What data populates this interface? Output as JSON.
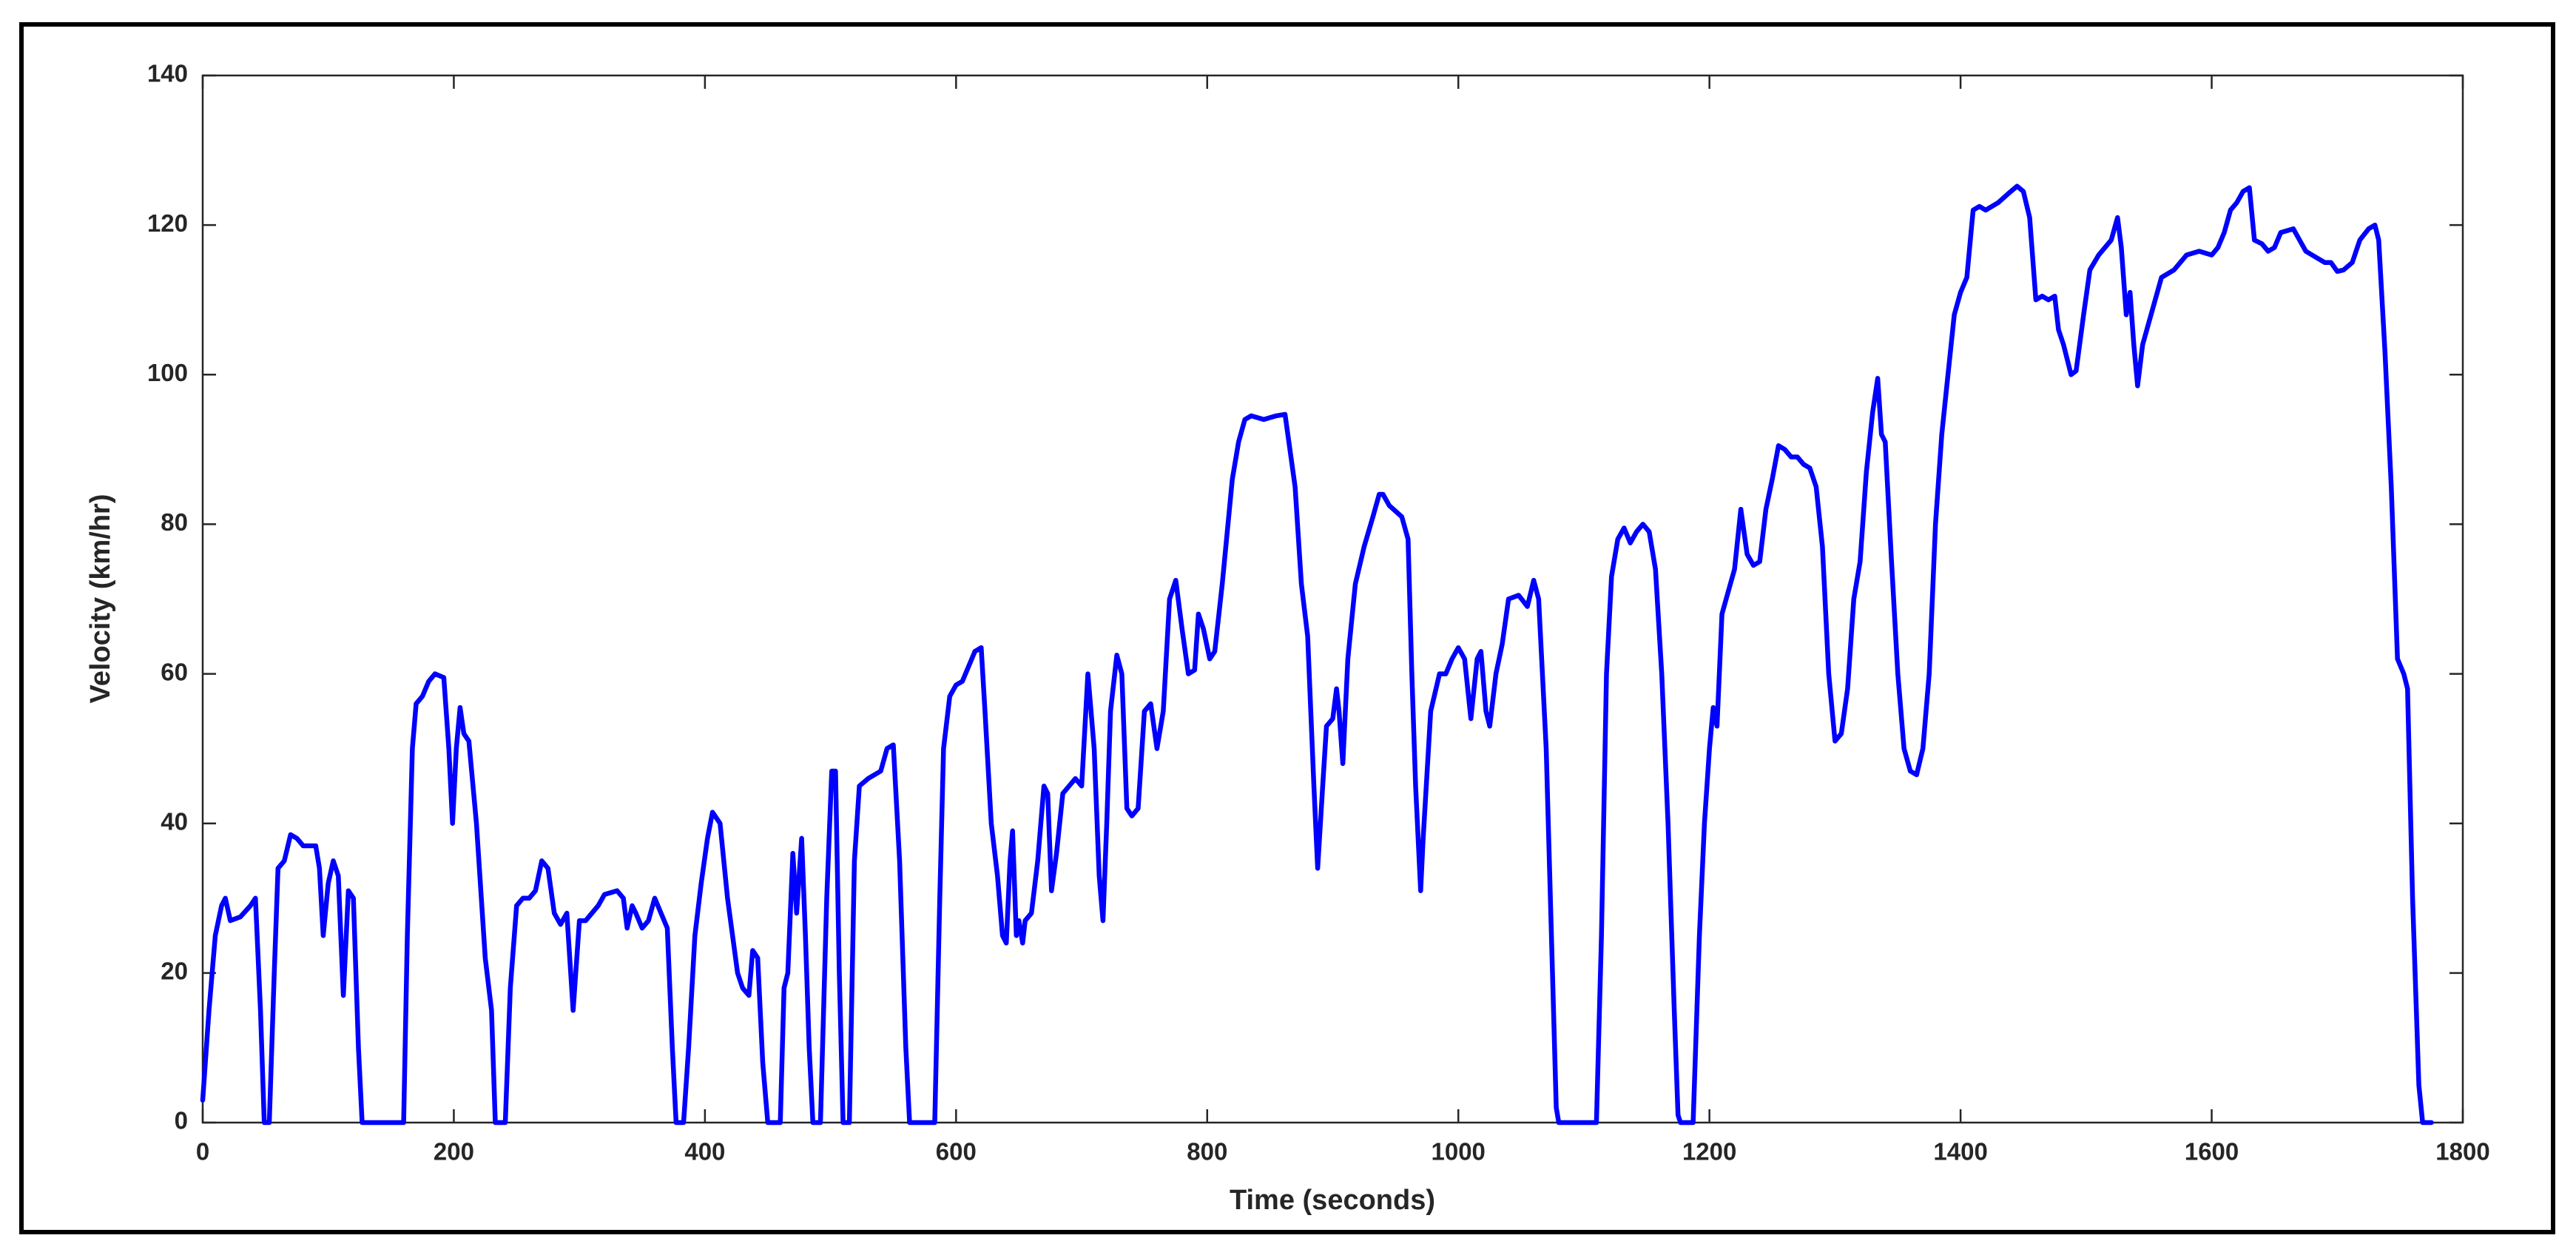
{
  "chart_data": {
    "type": "line",
    "xlabel": "Time (seconds)",
    "ylabel": "Velocity (km/hr)",
    "xlim": [
      0,
      1800
    ],
    "xticks": [
      0,
      200,
      400,
      600,
      800,
      1000,
      1200,
      1400,
      1600,
      1800
    ],
    "ylim": [
      0,
      140
    ],
    "yticks": [
      0,
      20,
      40,
      60,
      80,
      100,
      120,
      140
    ],
    "grid": false,
    "series": [
      {
        "color": "#0000ff",
        "x": [
          0,
          5,
          10,
          15,
          18,
          22,
          30,
          38,
          42,
          46,
          49,
          53,
          57,
          60,
          65,
          70,
          75,
          80,
          90,
          93,
          96,
          100,
          104,
          108,
          112,
          116,
          120,
          124,
          127,
          160,
          163,
          167,
          170,
          175,
          180,
          185,
          192,
          196,
          199,
          202,
          205,
          208,
          212,
          218,
          225,
          230,
          233,
          241,
          245,
          250,
          255,
          260,
          265,
          270,
          275,
          280,
          285,
          290,
          295,
          300,
          305,
          310,
          315,
          320,
          330,
          335,
          338,
          342,
          345,
          350,
          355,
          360,
          365,
          370,
          374,
          377,
          383,
          387,
          392,
          397,
          402,
          406,
          412,
          418,
          422,
          426,
          430,
          435,
          438,
          442,
          446,
          450,
          460,
          463,
          466,
          470,
          473,
          477,
          480,
          483,
          486,
          492,
          497,
          501,
          504,
          507,
          510,
          515,
          519,
          523,
          530,
          540,
          545,
          550,
          555,
          560,
          563,
          583,
          587,
          590,
          595,
          600,
          605,
          610,
          615,
          620,
          623,
          628,
          633,
          637,
          640,
          643,
          645,
          648,
          650,
          653,
          655,
          660,
          665,
          670,
          673,
          676,
          680,
          685,
          690,
          695,
          700,
          705,
          710,
          714,
          717,
          720,
          723,
          728,
          732,
          736,
          740,
          745,
          750,
          755,
          760,
          765,
          770,
          775,
          780,
          785,
          790,
          793,
          797,
          802,
          806,
          812,
          820,
          825,
          830,
          835,
          845,
          855,
          862,
          870,
          875,
          880,
          885,
          888,
          892,
          895,
          900,
          903,
          905,
          908,
          912,
          918,
          925,
          932,
          937,
          940,
          945,
          955,
          960,
          963,
          966,
          970,
          972,
          978,
          985,
          990,
          995,
          1000,
          1005,
          1010,
          1015,
          1018,
          1022,
          1025,
          1030,
          1035,
          1040,
          1048,
          1055,
          1060,
          1064,
          1070,
          1075,
          1078,
          1080,
          1110,
          1114,
          1118,
          1122,
          1127,
          1132,
          1137,
          1142,
          1147,
          1152,
          1157,
          1162,
          1167,
          1172,
          1175,
          1177,
          1187,
          1192,
          1196,
          1200,
          1203,
          1206,
          1210,
          1215,
          1220,
          1225,
          1230,
          1235,
          1240,
          1245,
          1250,
          1255,
          1260,
          1265,
          1270,
          1275,
          1280,
          1285,
          1290,
          1295,
          1300,
          1305,
          1310,
          1315,
          1320,
          1325,
          1330,
          1334,
          1337,
          1340,
          1345,
          1350,
          1355,
          1360,
          1365,
          1370,
          1375,
          1380,
          1385,
          1390,
          1395,
          1400,
          1405,
          1410,
          1415,
          1420,
          1430,
          1440,
          1445,
          1450,
          1455,
          1460,
          1465,
          1470,
          1475,
          1478,
          1482,
          1488,
          1492,
          1498,
          1503,
          1510,
          1515,
          1520,
          1525,
          1528,
          1532,
          1535,
          1538,
          1541,
          1545,
          1550,
          1555,
          1560,
          1570,
          1580,
          1590,
          1600,
          1605,
          1610,
          1615,
          1620,
          1625,
          1630,
          1634,
          1640,
          1645,
          1650,
          1655,
          1665,
          1670,
          1675,
          1680,
          1690,
          1695,
          1700,
          1705,
          1712,
          1718,
          1725,
          1730,
          1733,
          1738,
          1743,
          1748,
          1753,
          1756,
          1760,
          1765,
          1768,
          1775
        ],
        "values": [
          3,
          15,
          25,
          29,
          30,
          27,
          27.5,
          29,
          30,
          15,
          0,
          0,
          20,
          34,
          35,
          38.5,
          38,
          37,
          37,
          34,
          25,
          32,
          35,
          33,
          17,
          31,
          30,
          10,
          0,
          0,
          25,
          50,
          56,
          57,
          59,
          60,
          59.5,
          50,
          40,
          50,
          55.5,
          52,
          51,
          40,
          22,
          15,
          0,
          0,
          18,
          29,
          30,
          30,
          31,
          35,
          34,
          28,
          26.5,
          28,
          15,
          27,
          27,
          28,
          29,
          30.5,
          31,
          30,
          26,
          29,
          28,
          26,
          27,
          30,
          28,
          26,
          10,
          0,
          0,
          10,
          25,
          32,
          38,
          41.5,
          40,
          30,
          25,
          20,
          18,
          17,
          23,
          22,
          8,
          0,
          0,
          18,
          20,
          36,
          28,
          38,
          25,
          10,
          0,
          0,
          30,
          47,
          47,
          20,
          0,
          0,
          35,
          45,
          46,
          47,
          50,
          50.5,
          35,
          10,
          0,
          0,
          30,
          50,
          57,
          58.5,
          59,
          61,
          63,
          63.5,
          55,
          40,
          33,
          25,
          24,
          35,
          39,
          25,
          27,
          24,
          27,
          28,
          35,
          45,
          44,
          31,
          36,
          44,
          45,
          46,
          45,
          60,
          50,
          33,
          27,
          40,
          55,
          62.5,
          60,
          42,
          41,
          42,
          55,
          56,
          50,
          55,
          70,
          72.5,
          66,
          60,
          60.5,
          68,
          66,
          62,
          63,
          72,
          86,
          91,
          94,
          94.5,
          94,
          94.5,
          94.7,
          85,
          72,
          65,
          45,
          34,
          45,
          53,
          54,
          58,
          55,
          48,
          62,
          72,
          77,
          81,
          84,
          84,
          82.5,
          81,
          78,
          60,
          45,
          31,
          38,
          55,
          60,
          60,
          62,
          63.5,
          62,
          54,
          62,
          63,
          55,
          53,
          60,
          64,
          70,
          70.5,
          69,
          72.5,
          70,
          50,
          20,
          2,
          0,
          0,
          25,
          60,
          73,
          78,
          79.5,
          77.5,
          79,
          80,
          79,
          74,
          60,
          40,
          15,
          1,
          0,
          0,
          25,
          40,
          50,
          55.5,
          53,
          68,
          71,
          74,
          82,
          76,
          74.5,
          75,
          82,
          86,
          90.5,
          90,
          89,
          89,
          88,
          87.5,
          85,
          77,
          60,
          51,
          52,
          58,
          70,
          75,
          87,
          95,
          99.5,
          92,
          91,
          75,
          60,
          50,
          47,
          46.5,
          50,
          60,
          80,
          92,
          100,
          108,
          111,
          113,
          122,
          122.5,
          122,
          123,
          124.5,
          125.2,
          124.5,
          121,
          110,
          110.5,
          110,
          110.5,
          106,
          104,
          100,
          100.5,
          108,
          114,
          116,
          117,
          118,
          121,
          117,
          108,
          111,
          104,
          98.5,
          104,
          107,
          110,
          113,
          114,
          116,
          116.5,
          116,
          117,
          119,
          122,
          123,
          124.5,
          125,
          118,
          117.5,
          116.5,
          117,
          119,
          119.5,
          118,
          116.5,
          116,
          115,
          115,
          113.8,
          114,
          115,
          118,
          119.5,
          120,
          118,
          103,
          85,
          62,
          60,
          58,
          30,
          5,
          0,
          0
        ]
      }
    ]
  }
}
